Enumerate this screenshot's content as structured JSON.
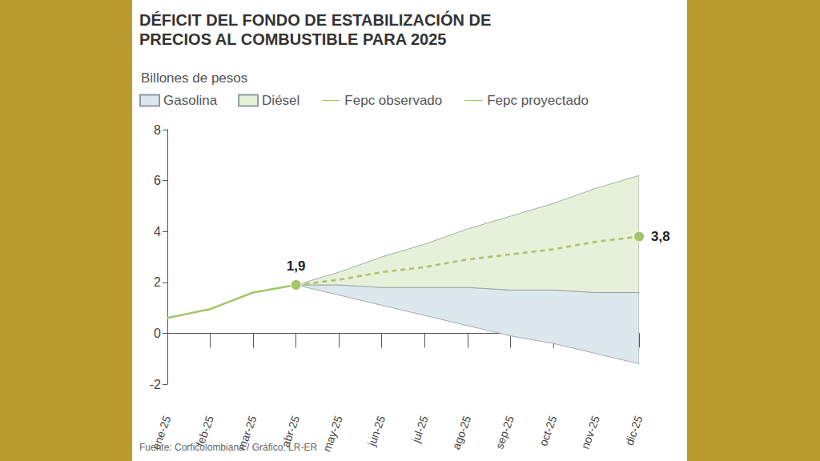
{
  "chart_data": {
    "type": "line",
    "title": "DÉFICIT DEL FONDO DE ESTABILIZACIÓN DE PRECIOS AL COMBUSTIBLE PARA 2025",
    "subtitle": "Billones de pesos",
    "source": "Fuente: Corficolombiana / Gráfico: LR-ER",
    "categories": [
      "ene-25",
      "feb-25",
      "mar-25",
      "abr-25",
      "may-25",
      "jun-25",
      "jul-25",
      "ago-25",
      "sep-25",
      "oct-25",
      "nov-25",
      "dic-25"
    ],
    "ylim": [
      -2,
      8
    ],
    "yticks": [
      -2,
      0,
      2,
      4,
      6,
      8
    ],
    "grid": false,
    "legend": "top-left",
    "series": [
      {
        "name": "Gasolina",
        "type": "band",
        "color": "#dde8ec",
        "upper": [
          null,
          null,
          null,
          1.9,
          1.9,
          1.8,
          1.8,
          1.8,
          1.7,
          1.7,
          1.6,
          1.6
        ],
        "lower": [
          null,
          null,
          null,
          1.9,
          1.5,
          1.1,
          0.7,
          0.3,
          -0.1,
          -0.4,
          -0.8,
          -1.2
        ]
      },
      {
        "name": "Diésel",
        "type": "band",
        "color": "#e7f0d8",
        "upper": [
          null,
          null,
          null,
          1.9,
          2.4,
          3.0,
          3.5,
          4.1,
          4.6,
          5.1,
          5.7,
          6.2
        ],
        "lower": [
          null,
          null,
          null,
          1.9,
          1.9,
          1.8,
          1.8,
          1.8,
          1.7,
          1.7,
          1.6,
          1.6
        ]
      },
      {
        "name": "Fepc observado",
        "type": "line",
        "color": "#a6c46a",
        "line_style": "solid",
        "marker": "circle",
        "data_labels": true,
        "values": [
          0.6,
          0.95,
          1.6,
          1.9,
          null,
          null,
          null,
          null,
          null,
          null,
          null,
          null
        ],
        "value_labels": [
          null,
          null,
          null,
          "1,9",
          null,
          null,
          null,
          null,
          null,
          null,
          null,
          null
        ]
      },
      {
        "name": "Fepc proyectado",
        "type": "line",
        "color": "#a6c46a",
        "line_style": "dashed",
        "marker": "circle",
        "data_labels": true,
        "values": [
          null,
          null,
          null,
          1.9,
          2.1,
          2.4,
          2.6,
          2.9,
          3.1,
          3.3,
          3.6,
          3.8
        ],
        "value_labels": [
          null,
          null,
          null,
          null,
          null,
          null,
          null,
          null,
          null,
          null,
          null,
          "3,8"
        ]
      }
    ]
  }
}
